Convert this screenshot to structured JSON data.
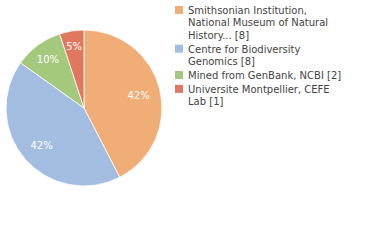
{
  "chart_data": {
    "type": "pie",
    "categories": [
      "Smithsonian Institution, National Museum of Natural History... [8]",
      "Centre for Biodiversity Genomics [8]",
      "Mined from GenBank, NCBI [2]",
      "Universite Montpellier, CEFE Lab [1]"
    ],
    "values": [
      42,
      42,
      10,
      5
    ],
    "value_labels": [
      "42%",
      "42%",
      "10%",
      "5%"
    ],
    "colors": [
      "#f0ad76",
      "#a3bde1",
      "#a4c97d",
      "#e0775f"
    ],
    "data_labels": true,
    "legend": "right"
  }
}
